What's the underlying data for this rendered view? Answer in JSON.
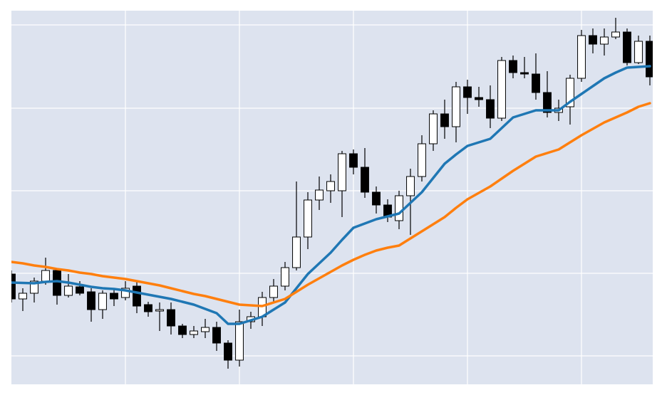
{
  "chart_data": {
    "type": "candlestick",
    "x": [
      0,
      1,
      2,
      3,
      4,
      5,
      6,
      7,
      8,
      9,
      10,
      11,
      12,
      13,
      14,
      15,
      16,
      17,
      18,
      19,
      20,
      21,
      22,
      23,
      24,
      25,
      26,
      27,
      28,
      29,
      30,
      31,
      32,
      33,
      34,
      35,
      36,
      37,
      38,
      39,
      40,
      41,
      42,
      43,
      44,
      45,
      46,
      47,
      48,
      49,
      50,
      51,
      52,
      53,
      54,
      55,
      56
    ],
    "open": [
      15.5,
      12,
      12.8,
      14.5,
      16,
      12.5,
      13.7,
      13,
      10.5,
      12.8,
      12.2,
      13.8,
      11.2,
      10.3,
      10.5,
      8.2,
      7,
      7.4,
      8,
      5.8,
      3.4,
      8.8,
      9.5,
      12.2,
      13.8,
      16.4,
      20.7,
      25.9,
      27.2,
      27.2,
      32.4,
      30.5,
      27,
      25.2,
      23,
      26.5,
      29.2,
      33.8,
      38,
      36.2,
      41.8,
      40.3,
      40,
      37.4,
      45.5,
      43.8,
      43.6,
      41,
      38.2,
      39,
      43,
      49,
      47.8,
      48.8,
      49.5,
      45.2,
      48.2
    ],
    "high": [
      16,
      13.5,
      15,
      17.8,
      16.2,
      15.5,
      14.5,
      13.5,
      13.2,
      13.5,
      14.5,
      14.5,
      11.6,
      11.5,
      11.5,
      8.5,
      8.2,
      9.2,
      8.8,
      6.2,
      10.5,
      10.2,
      13,
      14.8,
      17.2,
      28.5,
      27,
      29.2,
      29.5,
      32.8,
      33,
      33.2,
      27.8,
      26,
      27.2,
      30.3,
      35,
      38.5,
      40,
      42.5,
      42.8,
      41.8,
      42,
      46,
      46.2,
      46,
      46.5,
      44,
      40,
      43.5,
      49.8,
      50,
      50,
      51.5,
      50,
      49,
      49
    ],
    "low": [
      11.5,
      10.3,
      11.5,
      14,
      11.2,
      12.2,
      12.5,
      8.8,
      9.2,
      11,
      11.8,
      10,
      9.5,
      7.5,
      7,
      6.5,
      6.5,
      6.5,
      4.7,
      2.2,
      2.5,
      7.8,
      8.2,
      11.5,
      13.2,
      16,
      19,
      24.5,
      25.5,
      23.5,
      29.5,
      26.2,
      24,
      22.8,
      21.8,
      21,
      28.5,
      32.8,
      34.5,
      34,
      38,
      39,
      36,
      37,
      43,
      43,
      40,
      37.5,
      37,
      36.5,
      42.5,
      46.5,
      46.2,
      48.5,
      44.8,
      45,
      42
    ],
    "close": [
      12,
      12.8,
      14.5,
      16,
      12.5,
      13.8,
      12.8,
      10.5,
      12.8,
      12,
      13.5,
      11,
      10.2,
      10.5,
      8.2,
      7,
      7.5,
      8,
      5.8,
      3.4,
      8.8,
      9.5,
      12.2,
      13.8,
      16.4,
      20.7,
      25.9,
      27.3,
      28.5,
      32.4,
      30.5,
      27,
      25.2,
      23.5,
      26.5,
      29.2,
      33.8,
      38,
      36.2,
      41.8,
      40.3,
      40,
      37.4,
      45.5,
      43.8,
      43.6,
      41,
      38.2,
      38.8,
      43,
      49,
      47.8,
      48.8,
      49.5,
      45.2,
      48.2,
      43.2
    ],
    "up_color": "#ffffff",
    "down_color": "#000000",
    "edge_color": "#000000",
    "lines": [
      {
        "color": "#1f77b4",
        "values": [
          14.3,
          14.25,
          14.2,
          14.4,
          14.5,
          14.3,
          14,
          13.7,
          13.5,
          13.4,
          13.2,
          12.9,
          12.6,
          12.3,
          12,
          11.6,
          11.2,
          10.6,
          10,
          8.5,
          8.5,
          9,
          9.5,
          10.5,
          11.5,
          13.5,
          15.5,
          17,
          18.5,
          20.3,
          22,
          22.6,
          23.2,
          23.6,
          24,
          25.5,
          27,
          29,
          31,
          32.3,
          33.5,
          34,
          34.5,
          36,
          37.5,
          38,
          38.5,
          38.5,
          38.5,
          39.7,
          40.8,
          41.9,
          43,
          43.8,
          44.5,
          44.6,
          44.7
        ]
      },
      {
        "color": "#ff7f0e",
        "values": [
          17.2,
          17,
          16.7,
          16.5,
          16.2,
          16,
          15.7,
          15.5,
          15.2,
          15,
          14.8,
          14.5,
          14.2,
          13.9,
          13.5,
          13.1,
          12.7,
          12.4,
          12,
          11.6,
          11.2,
          11.1,
          11,
          11.5,
          12,
          13,
          14,
          14.9,
          15.8,
          16.7,
          17.5,
          18.2,
          18.8,
          19.2,
          19.5,
          20.5,
          21.5,
          22.5,
          23.5,
          24.8,
          26,
          26.9,
          27.8,
          28.9,
          30,
          31,
          32,
          32.5,
          33,
          34,
          35,
          35.9,
          36.8,
          37.5,
          38.2,
          39,
          39.5
        ]
      }
    ],
    "xlim": [
      0,
      56.25
    ],
    "xticks": [
      10,
      20,
      30,
      40,
      50
    ],
    "ylim": [
      0,
      52.5
    ],
    "yticks": [
      4,
      15.6,
      27.2,
      38.8,
      50.5
    ],
    "grid": true,
    "background": "#dde3ef"
  }
}
